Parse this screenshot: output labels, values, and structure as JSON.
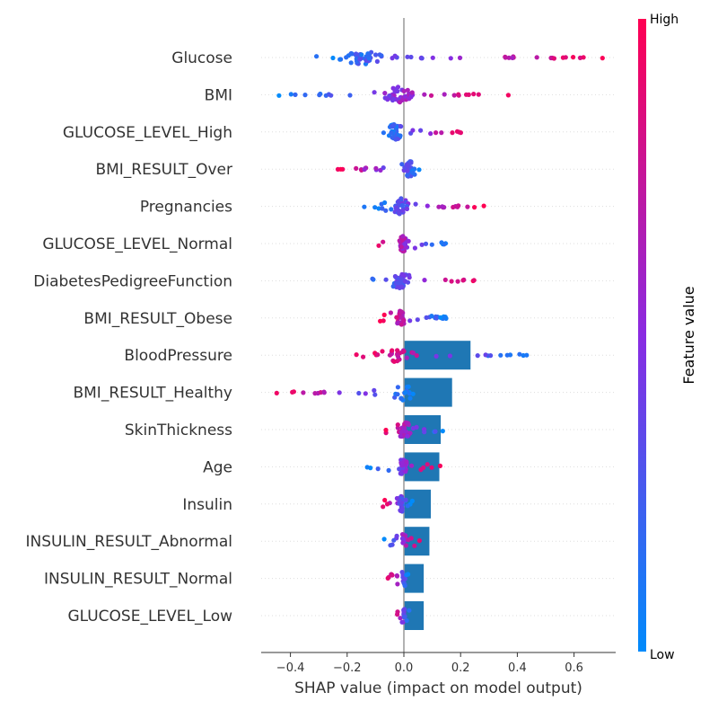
{
  "chart_data": {
    "type": "scatter",
    "subtype": "shap-beeswarm-with-bar-overlay",
    "title": "",
    "xlabel": "SHAP value (impact on model output)",
    "ylabel": "",
    "xlim": [
      -0.5,
      0.75
    ],
    "xticks": [
      -0.4,
      -0.2,
      0.0,
      0.2,
      0.4,
      0.6
    ],
    "xtick_labels": [
      "−0.4",
      "−0.2",
      "0.0",
      "0.2",
      "0.4",
      "0.6"
    ],
    "grid": "faint dotted horizontal guide per feature row",
    "colorbar": {
      "title": "Feature value",
      "high_label": "High",
      "low_label": "Low",
      "low_color": "#008bfb",
      "high_color": "#ff0052"
    },
    "bar_color": "#1f77b4",
    "features": [
      {
        "name": "Glucose",
        "bar": null,
        "min": -0.37,
        "max": 0.71,
        "center": -0.15,
        "n": 70,
        "low_side": "left"
      },
      {
        "name": "BMI",
        "bar": null,
        "min": -0.45,
        "max": 0.37,
        "center": -0.02,
        "n": 60,
        "low_side": "left"
      },
      {
        "name": "GLUCOSE_LEVEL_High",
        "bar": null,
        "min": -0.09,
        "max": 0.22,
        "center": -0.03,
        "n": 50,
        "low_side": "left"
      },
      {
        "name": "BMI_RESULT_Over",
        "bar": null,
        "min": -0.25,
        "max": 0.1,
        "center": 0.02,
        "n": 50,
        "low_side": "right"
      },
      {
        "name": "Pregnancies",
        "bar": null,
        "min": -0.15,
        "max": 0.29,
        "center": -0.01,
        "n": 50,
        "low_side": "left"
      },
      {
        "name": "GLUCOSE_LEVEL_Normal",
        "bar": null,
        "min": -0.1,
        "max": 0.15,
        "center": 0.0,
        "n": 45,
        "low_side": "right"
      },
      {
        "name": "DiabetesPedigreeFunction",
        "bar": null,
        "min": -0.15,
        "max": 0.27,
        "center": -0.01,
        "n": 50,
        "low_side": "left"
      },
      {
        "name": "BMI_RESULT_Obese",
        "bar": null,
        "min": -0.09,
        "max": 0.15,
        "center": -0.01,
        "n": 45,
        "low_side": "right"
      },
      {
        "name": "BloodPressure",
        "bar": 0.235,
        "min": -0.17,
        "max": 0.45,
        "center": -0.02,
        "n": 40,
        "low_side": "right"
      },
      {
        "name": "BMI_RESULT_Healthy",
        "bar": 0.17,
        "min": -0.45,
        "max": 0.05,
        "center": 0.0,
        "n": 30,
        "low_side": "right"
      },
      {
        "name": "SkinThickness",
        "bar": 0.13,
        "min": -0.09,
        "max": 0.16,
        "center": 0.0,
        "n": 40,
        "low_side": "right"
      },
      {
        "name": "Age",
        "bar": 0.125,
        "min": -0.13,
        "max": 0.13,
        "center": 0.0,
        "n": 40,
        "low_side": "left"
      },
      {
        "name": "Insulin",
        "bar": 0.095,
        "min": -0.08,
        "max": 0.03,
        "center": -0.01,
        "n": 30,
        "low_side": "right"
      },
      {
        "name": "INSULIN_RESULT_Abnormal",
        "bar": 0.09,
        "min": -0.07,
        "max": 0.06,
        "center": 0.0,
        "n": 25,
        "low_side": "left"
      },
      {
        "name": "INSULIN_RESULT_Normal",
        "bar": 0.07,
        "min": -0.06,
        "max": 0.02,
        "center": 0.0,
        "n": 20,
        "low_side": "right"
      },
      {
        "name": "GLUCOSE_LEVEL_Low",
        "bar": 0.07,
        "min": -0.03,
        "max": 0.02,
        "center": 0.0,
        "n": 15,
        "low_side": "right"
      }
    ]
  }
}
